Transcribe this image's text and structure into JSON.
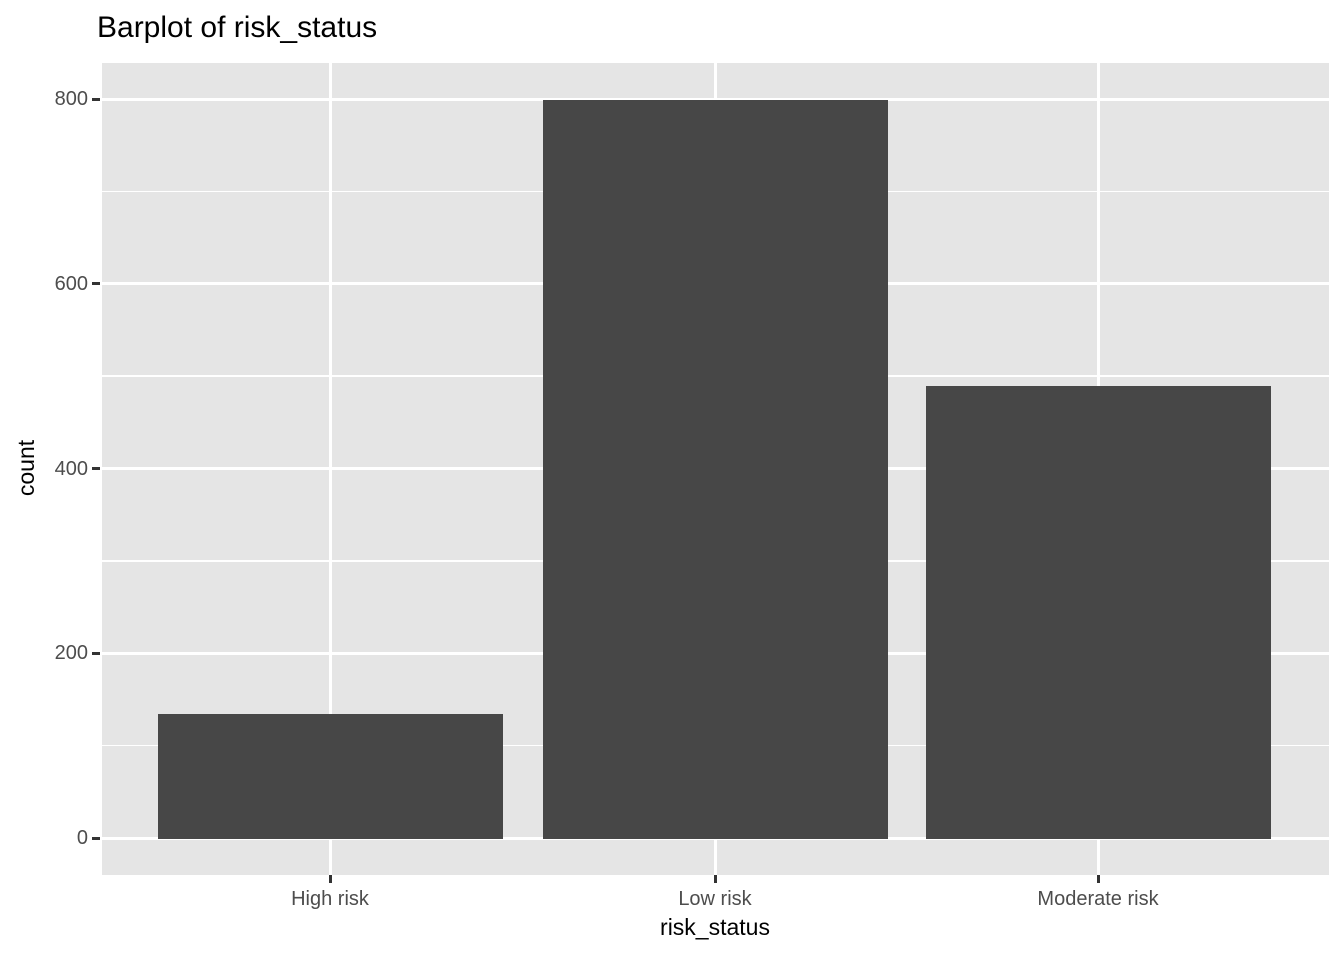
{
  "chart_data": {
    "type": "bar",
    "title": "Barplot of risk_status",
    "xlabel": "risk_status",
    "ylabel": "count",
    "categories": [
      "High risk",
      "Low risk",
      "Moderate risk"
    ],
    "values": [
      135,
      800,
      490
    ],
    "ylim": [
      0,
      800
    ],
    "yticks": [
      0,
      200,
      400,
      600,
      800
    ],
    "yminor_ticks": [
      100,
      300,
      500,
      700
    ],
    "grid": {
      "major": true,
      "minor": true,
      "vertical_major": true
    },
    "legend": "none",
    "style": {
      "bar_fill": "#474747",
      "panel_bg": "#E5E5E5",
      "grid_color": "#FFFFFF",
      "tick_label_color": "#4D4D4D",
      "axis_title_color": "#000000",
      "title_color": "#000000",
      "tick_mark_color": "#333333",
      "background": "#FFFFFF"
    }
  }
}
